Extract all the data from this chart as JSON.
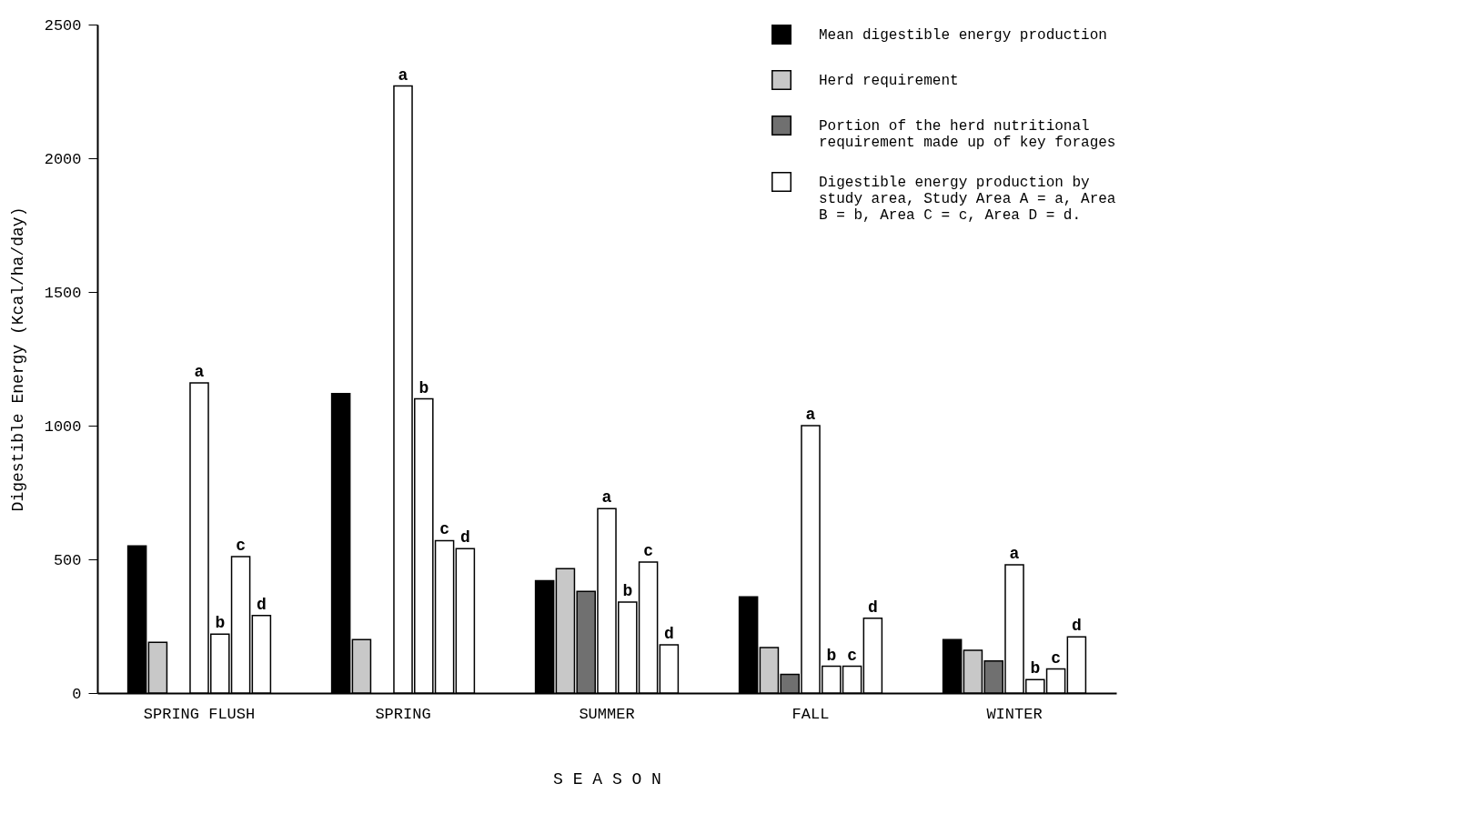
{
  "chart_data": {
    "type": "bar",
    "xlabel": "S E A S O N",
    "ylabel": "Digestible Energy (Kcal/ha/day)",
    "categories": [
      "SPRING FLUSH",
      "SPRING",
      "SUMMER",
      "FALL",
      "WINTER"
    ],
    "series": [
      {
        "name": "Mean digestible energy production",
        "color": "#000000",
        "values": [
          550,
          1120,
          420,
          360,
          200
        ]
      },
      {
        "name": "Herd requirement",
        "color": "#c8c8c8",
        "values": [
          190,
          200,
          465,
          170,
          160
        ]
      },
      {
        "name": "Portion of the herd nutritional requirement made up of key forages",
        "color": "#707070",
        "values": [
          null,
          null,
          380,
          70,
          120
        ]
      },
      {
        "name": "a",
        "color": "#ffffff",
        "values": [
          1160,
          2270,
          690,
          1000,
          480
        ]
      },
      {
        "name": "b",
        "color": "#ffffff",
        "values": [
          220,
          1100,
          340,
          100,
          50
        ]
      },
      {
        "name": "c",
        "color": "#ffffff",
        "values": [
          510,
          570,
          490,
          100,
          90
        ]
      },
      {
        "name": "d",
        "color": "#ffffff",
        "values": [
          290,
          540,
          180,
          280,
          210
        ]
      }
    ],
    "annotations": [
      "Digestible energy production by study area, Study Area A = a, Area B = b, Area C = c, Area D = d."
    ],
    "ylim": [
      0,
      2500
    ],
    "yticks": [
      0,
      500,
      1000,
      1500,
      2000,
      2500
    ],
    "grid": false,
    "legend": "top right"
  }
}
